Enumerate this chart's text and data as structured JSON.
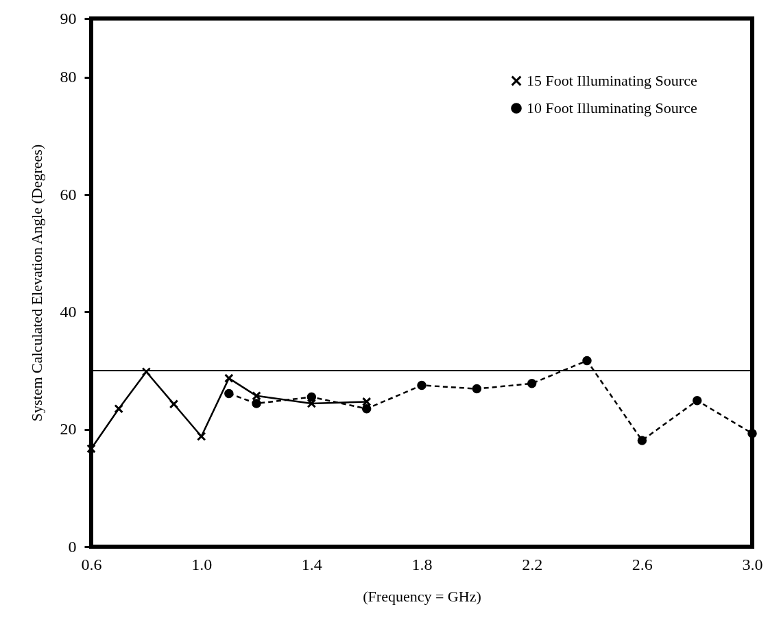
{
  "chart_data": {
    "type": "line",
    "xlabel": "(Frequency = GHz)",
    "ylabel": "System Calculated Elevation Angle (Degrees)",
    "xlim": [
      0.6,
      3.0
    ],
    "xticks": [
      0.6,
      {
        "value": 1,
        "label": "1.0"
      },
      1.4,
      1.8,
      2.2,
      2.6,
      {
        "value": 3,
        "label": "3.0"
      }
    ],
    "ylim": [
      0,
      90
    ],
    "yticks": [
      0,
      20,
      40,
      60,
      80,
      90
    ],
    "grid": false,
    "legend": "top right",
    "ref_lines": [
      {
        "axis": "y",
        "value": 30
      }
    ],
    "series": [
      {
        "name": "15 Foot Illuminating Source",
        "color": "#000000",
        "marker": "cross",
        "line_style": "solid",
        "x": [
          0.6,
          0.7,
          0.8,
          0.9,
          1.0,
          1.1,
          1.2,
          1.4,
          1.6
        ],
        "values": [
          16.7,
          23.5,
          29.8,
          24.3,
          18.8,
          28.7,
          25.7,
          24.4,
          24.7
        ]
      },
      {
        "name": "10 Foot Illuminating Source",
        "color": "#000000",
        "marker": "circle",
        "line_style": "dashed",
        "x": [
          1.1,
          1.2,
          1.4,
          1.6,
          1.8,
          2.0,
          2.2,
          2.4,
          2.6,
          2.8,
          3.0
        ],
        "values": [
          26.1,
          24.4,
          25.5,
          23.5,
          27.5,
          26.9,
          27.8,
          31.7,
          18.1,
          24.9,
          19.3
        ]
      }
    ]
  }
}
